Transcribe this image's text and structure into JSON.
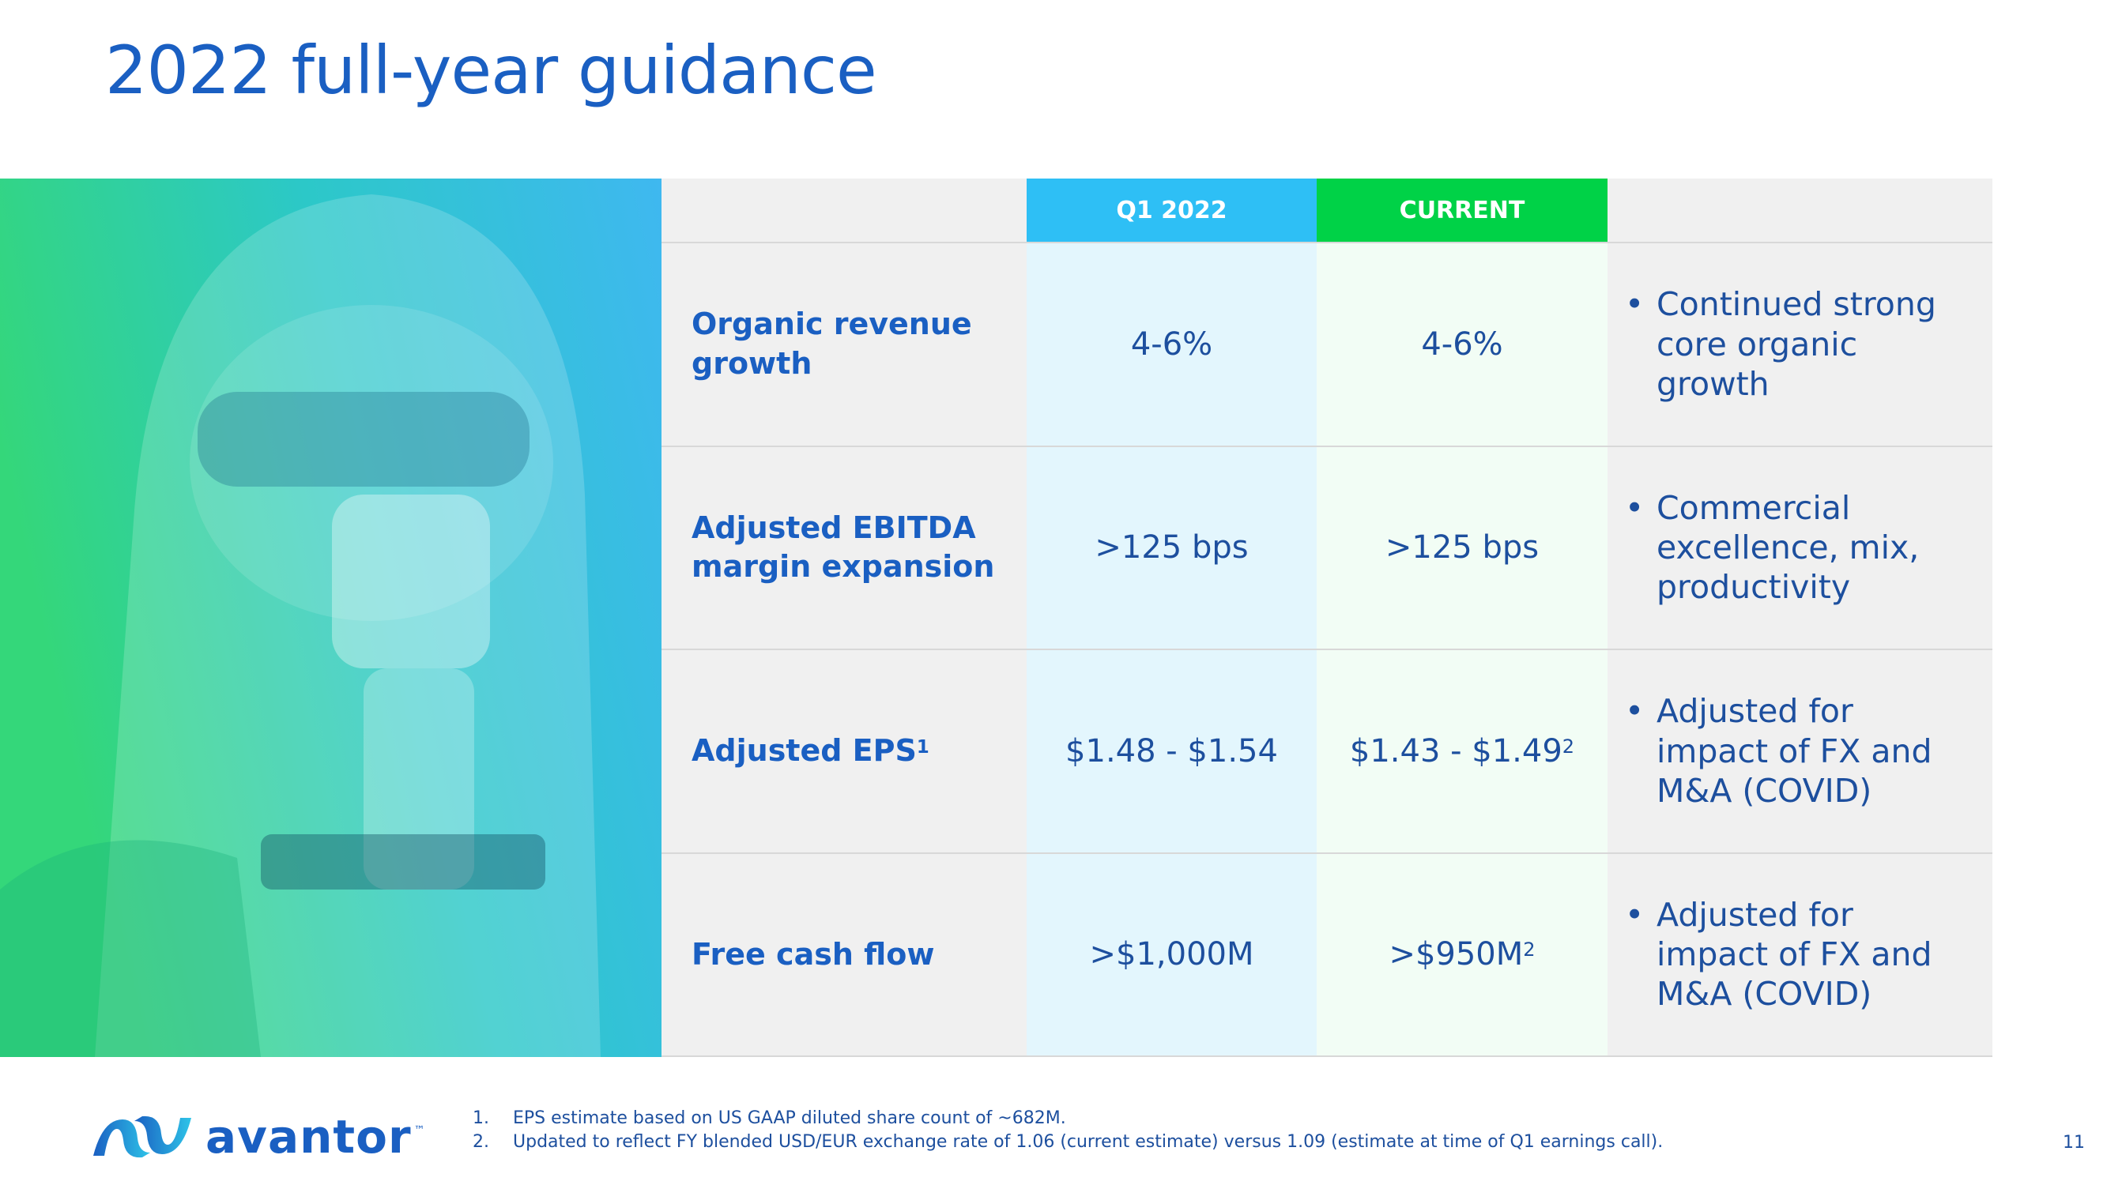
{
  "header": {
    "title": "2022 full-year guidance"
  },
  "table": {
    "columns": [
      "Q1 2022",
      "CURRENT"
    ],
    "rows": [
      {
        "label": "Organic revenue growth",
        "q1": "4-6%",
        "current": "4-6%",
        "note": "Continued strong core organic growth"
      },
      {
        "label": "Adjusted EBITDA margin expansion",
        "q1": ">125 bps",
        "current": ">125 bps",
        "note": "Commercial excellence, mix, productivity"
      },
      {
        "label": "Adjusted EPS",
        "label_sup": "1",
        "q1": "$1.48 - $1.54",
        "current": "$1.43 - $1.49",
        "current_sup": "2",
        "note": "Adjusted for impact of FX and M&A (COVID)"
      },
      {
        "label": "Free cash flow",
        "q1": ">$1,000M",
        "current": ">$950M",
        "current_sup": "2",
        "note": "Adjusted for impact of FX and M&A (COVID)"
      }
    ]
  },
  "footnotes": [
    {
      "marker": "1.",
      "text": "EPS estimate based on US GAAP diluted share count of ~682M."
    },
    {
      "marker": "2.",
      "text": "Updated to reflect FY blended USD/EUR exchange rate of 1.06 (current estimate) versus 1.09 (estimate at time of Q1 earnings call)."
    }
  ],
  "logo": {
    "name": "avantor",
    "tm": "™"
  },
  "page_number": "11"
}
